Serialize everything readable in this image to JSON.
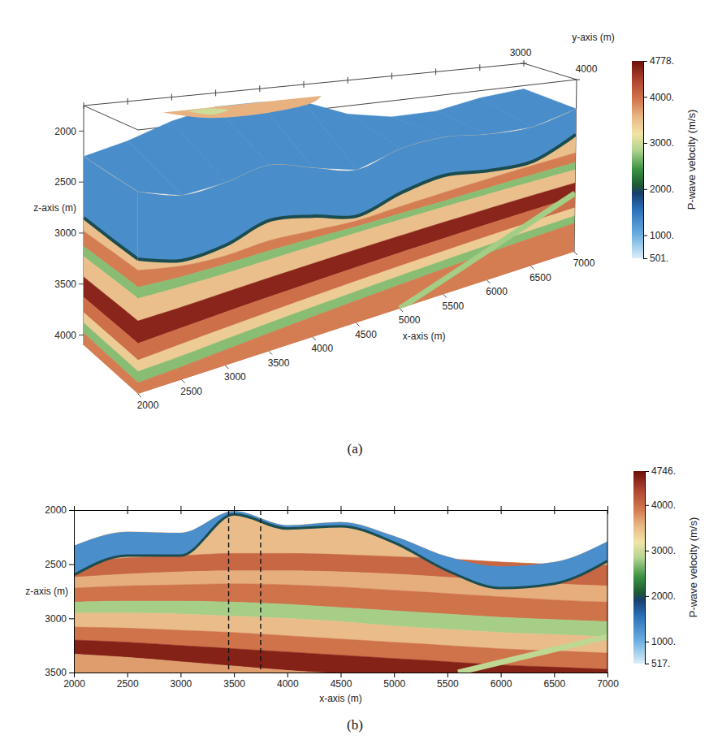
{
  "chart_data": [
    {
      "type": "volume_3d",
      "panel": "(a)",
      "x_label": "x-axis (m)",
      "y_label": "y-axis (m)",
      "z_label": "z-axis (m)",
      "xlim": [
        2000,
        7000
      ],
      "ylim": [
        3000,
        4000
      ],
      "zlim": [
        1750,
        4100
      ],
      "xticks": [
        2000,
        2500,
        3000,
        3500,
        4000,
        4500,
        5000,
        5500,
        6000,
        6500,
        7000
      ],
      "yticks": [
        3000,
        4000
      ],
      "zticks": [
        2000,
        2500,
        3000,
        3500,
        4000
      ],
      "colorbar": {
        "label": "P-wave velocity (m/s)",
        "lim": [
          501,
          4778
        ],
        "ticks": [
          {
            "value": 4778,
            "label": "4778."
          },
          {
            "value": 4000,
            "label": "4000."
          },
          {
            "value": 3000,
            "label": "3000."
          },
          {
            "value": 2000,
            "label": "2000."
          },
          {
            "value": 1000,
            "label": "1000."
          },
          {
            "value": 501,
            "label": "501."
          }
        ]
      },
      "water_velocity": 1300,
      "seafloor_velocity": 2000,
      "back_top": [
        2250,
        2150,
        2000,
        1900,
        1900,
        1950,
        2150,
        2250,
        2250,
        2150,
        2100
      ],
      "front": {
        "x": [
          2000,
          2500,
          3000,
          3500,
          4000,
          4500,
          5000,
          5500,
          6000,
          6500,
          7000
        ],
        "top": [
          2300,
          2400,
          2350,
          2250,
          2350,
          2450,
          2300,
          2250,
          2300,
          2300,
          2150
        ],
        "seafloor": [
          2900,
          3000,
          2950,
          2800,
          2850,
          2950,
          2800,
          2700,
          2750,
          2750,
          2500
        ],
        "layers": [
          {
            "velocity": 3500,
            "bottom": [
              3000,
              3050,
              3050,
              3000,
              3000,
              3000,
              2950,
              2900,
              2850,
              2800,
              2750
            ]
          },
          {
            "velocity": 3900,
            "bottom": [
              3150,
              3150,
              3130,
              3100,
              3080,
              3060,
              3030,
              3000,
              2960,
              2920,
              2880
            ]
          },
          {
            "velocity": 2700,
            "bottom": [
              3250,
              3240,
              3220,
              3190,
              3160,
              3130,
              3100,
              3070,
              3040,
              3010,
              2980
            ]
          },
          {
            "velocity": 3500,
            "bottom": [
              3450,
              3430,
              3400,
              3370,
              3340,
              3310,
              3280,
              3250,
              3220,
              3190,
              3160
            ]
          },
          {
            "velocity": 4600,
            "bottom": [
              3650,
              3620,
              3590,
              3560,
              3530,
              3500,
              3470,
              3440,
              3410,
              3380,
              3350
            ]
          },
          {
            "velocity": 4000,
            "bottom": [
              3800,
              3770,
              3740,
              3710,
              3680,
              3650,
              3620,
              3590,
              3560,
              3530,
              3500
            ]
          },
          {
            "velocity": 3400,
            "bottom": [
              3900,
              3880,
              3850,
              3820,
              3790,
              3760,
              3730,
              3700,
              3670,
              3640,
              3610
            ]
          },
          {
            "velocity": 2700,
            "bottom": [
              4000,
              3980,
              3950,
              3920,
              3890,
              3860,
              3830,
              3800,
              3770,
              3740,
              3710
            ]
          },
          {
            "velocity": 3900,
            "bottom": [
              4100,
              4100,
              4100,
              4100,
              4100,
              4100,
              4100,
              4100,
              4100,
              4100,
              4100
            ]
          }
        ]
      },
      "left": {
        "y": [
          3000,
          3500,
          4000
        ],
        "top": [
          2250,
          2280,
          2300
        ],
        "seafloor": [
          2850,
          2880,
          2900
        ],
        "bottoms": [
          [
            2980,
            2990,
            3000
          ],
          [
            3130,
            3140,
            3150
          ],
          [
            3230,
            3240,
            3250
          ],
          [
            3430,
            3440,
            3450
          ],
          [
            3630,
            3640,
            3650
          ],
          [
            3780,
            3790,
            3800
          ],
          [
            3880,
            3890,
            3900
          ],
          [
            3980,
            3990,
            4000
          ],
          [
            4100,
            4100,
            4100
          ]
        ]
      },
      "outcrops": [
        {
          "velocity": 3600,
          "z": 1900,
          "x": [
            2900,
            3200,
            3900,
            4500,
            4700
          ],
          "y": [
            3000,
            3350,
            3400,
            3200,
            3000
          ]
        },
        {
          "velocity": 3000,
          "z": 1900,
          "x": [
            3150,
            3300,
            3550,
            3400
          ],
          "y": [
            3050,
            3250,
            3150,
            3020
          ]
        }
      ],
      "fault": {
        "x": [
          5000,
          7000
        ],
        "z": [
          4100,
          3300
        ],
        "velocity": 2800
      }
    },
    {
      "type": "section",
      "panel": "(b)",
      "x_label": "x-axis (m)",
      "y_label": "z-axis (m)",
      "xlim": [
        2000,
        7000
      ],
      "ylim": [
        2000,
        3500
      ],
      "xticks": [
        2000,
        2500,
        3000,
        3500,
        4000,
        4500,
        5000,
        5500,
        6000,
        6500,
        7000
      ],
      "yticks": [
        2000,
        2500,
        3000,
        3500
      ],
      "colorbar": {
        "label": "P-wave velocity (m/s)",
        "lim": [
          517,
          4746
        ],
        "ticks": [
          {
            "value": 4746,
            "label": "4746."
          },
          {
            "value": 4000,
            "label": "4000."
          },
          {
            "value": 3000,
            "label": "3000."
          },
          {
            "value": 2000,
            "label": "2000."
          },
          {
            "value": 1000,
            "label": "1000."
          },
          {
            "value": 517,
            "label": "517."
          }
        ]
      },
      "water_velocity": 1300,
      "seafloor_velocity": 2000,
      "x": [
        2000,
        2500,
        3000,
        3500,
        4000,
        4500,
        5000,
        5500,
        6000,
        6500,
        7000
      ],
      "top": [
        2330,
        2200,
        2210,
        2010,
        2140,
        2110,
        2240,
        2430,
        2520,
        2480,
        2290
      ],
      "seafloor": [
        2600,
        2420,
        2420,
        2040,
        2170,
        2150,
        2300,
        2560,
        2720,
        2680,
        2470
      ],
      "layers": [
        {
          "velocity": 3500,
          "bottom": [
            2470,
            2440,
            2420,
            2400,
            2400,
            2410,
            2430,
            2450,
            2480,
            2500,
            2510
          ]
        },
        {
          "velocity": 4050,
          "bottom": [
            2620,
            2590,
            2570,
            2560,
            2560,
            2570,
            2590,
            2620,
            2650,
            2680,
            2700
          ]
        },
        {
          "velocity": 3600,
          "bottom": [
            2720,
            2700,
            2690,
            2680,
            2690,
            2710,
            2740,
            2770,
            2800,
            2830,
            2850
          ]
        },
        {
          "velocity": 3950,
          "bottom": [
            2850,
            2840,
            2840,
            2850,
            2870,
            2900,
            2930,
            2960,
            2990,
            3010,
            3030
          ]
        },
        {
          "velocity": 2800,
          "bottom": [
            2950,
            2950,
            2960,
            2980,
            3000,
            3030,
            3070,
            3100,
            3130,
            3150,
            3170
          ]
        },
        {
          "velocity": 3500,
          "bottom": [
            3080,
            3090,
            3110,
            3130,
            3160,
            3190,
            3220,
            3250,
            3280,
            3300,
            3320
          ]
        },
        {
          "velocity": 3950,
          "bottom": [
            3200,
            3220,
            3250,
            3280,
            3310,
            3340,
            3370,
            3400,
            3430,
            3450,
            3470
          ]
        },
        {
          "velocity": 4600,
          "bottom": [
            3330,
            3360,
            3400,
            3440,
            3480,
            3510,
            3540,
            3570,
            3600,
            3620,
            3640
          ]
        },
        {
          "velocity": 3700,
          "bottom": [
            3700,
            3700,
            3700,
            3700,
            3700,
            3700,
            3700,
            3700,
            3700,
            3700,
            3700
          ]
        }
      ],
      "fault": {
        "x": [
          5600,
          7000
        ],
        "z": [
          3500,
          3170
        ],
        "velocity": 2900
      },
      "dashed_lines": [
        3450,
        3750
      ],
      "line_style": "dashed"
    }
  ]
}
